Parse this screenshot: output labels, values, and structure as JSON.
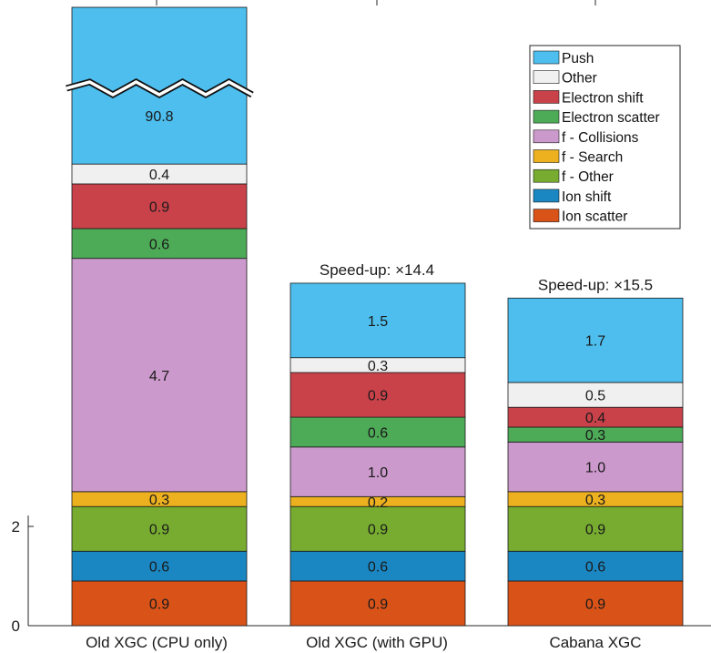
{
  "chart_data": {
    "type": "bar",
    "stacked": true,
    "categories": [
      "Old XGC (CPU only)",
      "Old XGC (with GPU)",
      "Cabana XGC"
    ],
    "series": [
      {
        "name": "Ion scatter",
        "color": "#D95319",
        "values": [
          0.9,
          0.9,
          0.9
        ]
      },
      {
        "name": "Ion shift",
        "color": "#1A87C2",
        "values": [
          0.6,
          0.6,
          0.6
        ]
      },
      {
        "name": "f - Other",
        "color": "#77AC30",
        "values": [
          0.9,
          0.9,
          0.9
        ]
      },
      {
        "name": "f - Search",
        "color": "#EDB120",
        "values": [
          0.3,
          0.2,
          0.3
        ]
      },
      {
        "name": "f - Collisions",
        "color": "#CC99CC",
        "values": [
          4.7,
          1.0,
          1.0
        ]
      },
      {
        "name": "Electron scatter",
        "color": "#4DAA57",
        "values": [
          0.6,
          0.6,
          0.3
        ]
      },
      {
        "name": "Electron shift",
        "color": "#C9424A",
        "values": [
          0.9,
          0.9,
          0.4
        ]
      },
      {
        "name": "Other",
        "color": "#F0F0F0",
        "values": [
          0.4,
          0.3,
          0.5
        ]
      },
      {
        "name": "Push",
        "color": "#4DBEEE",
        "values": [
          90.8,
          1.5,
          1.7
        ]
      }
    ],
    "value_labels": [
      [
        "0.9",
        "0.6",
        "0.9",
        "0.3",
        "4.7",
        "0.6",
        "0.9",
        "0.4",
        "90.8"
      ],
      [
        "0.9",
        "0.6",
        "0.9",
        "0.2",
        "1.0",
        "0.6",
        "0.9",
        "0.3",
        "1.5"
      ],
      [
        "0.9",
        "0.6",
        "0.9",
        "0.3",
        "1.0",
        "0.3",
        "0.4",
        "0.5",
        "1.7"
      ]
    ],
    "annotations": [
      {
        "category": "Old XGC (with GPU)",
        "text": "Speed-up: ×14.4"
      },
      {
        "category": "Cabana XGC",
        "text": "Speed-up: ×15.5"
      }
    ],
    "axis_break": {
      "category": "Old XGC (CPU only)",
      "series": "Push"
    },
    "yticks": [
      0,
      2
    ],
    "ylim": [
      0,
      11.6
    ],
    "legend_order": [
      "Push",
      "Other",
      "Electron shift",
      "Electron scatter",
      "f - Collisions",
      "f - Search",
      "f - Other",
      "Ion shift",
      "Ion scatter"
    ],
    "legend_position": "top-right",
    "grid": false,
    "title": "",
    "xlabel": "",
    "ylabel": ""
  }
}
